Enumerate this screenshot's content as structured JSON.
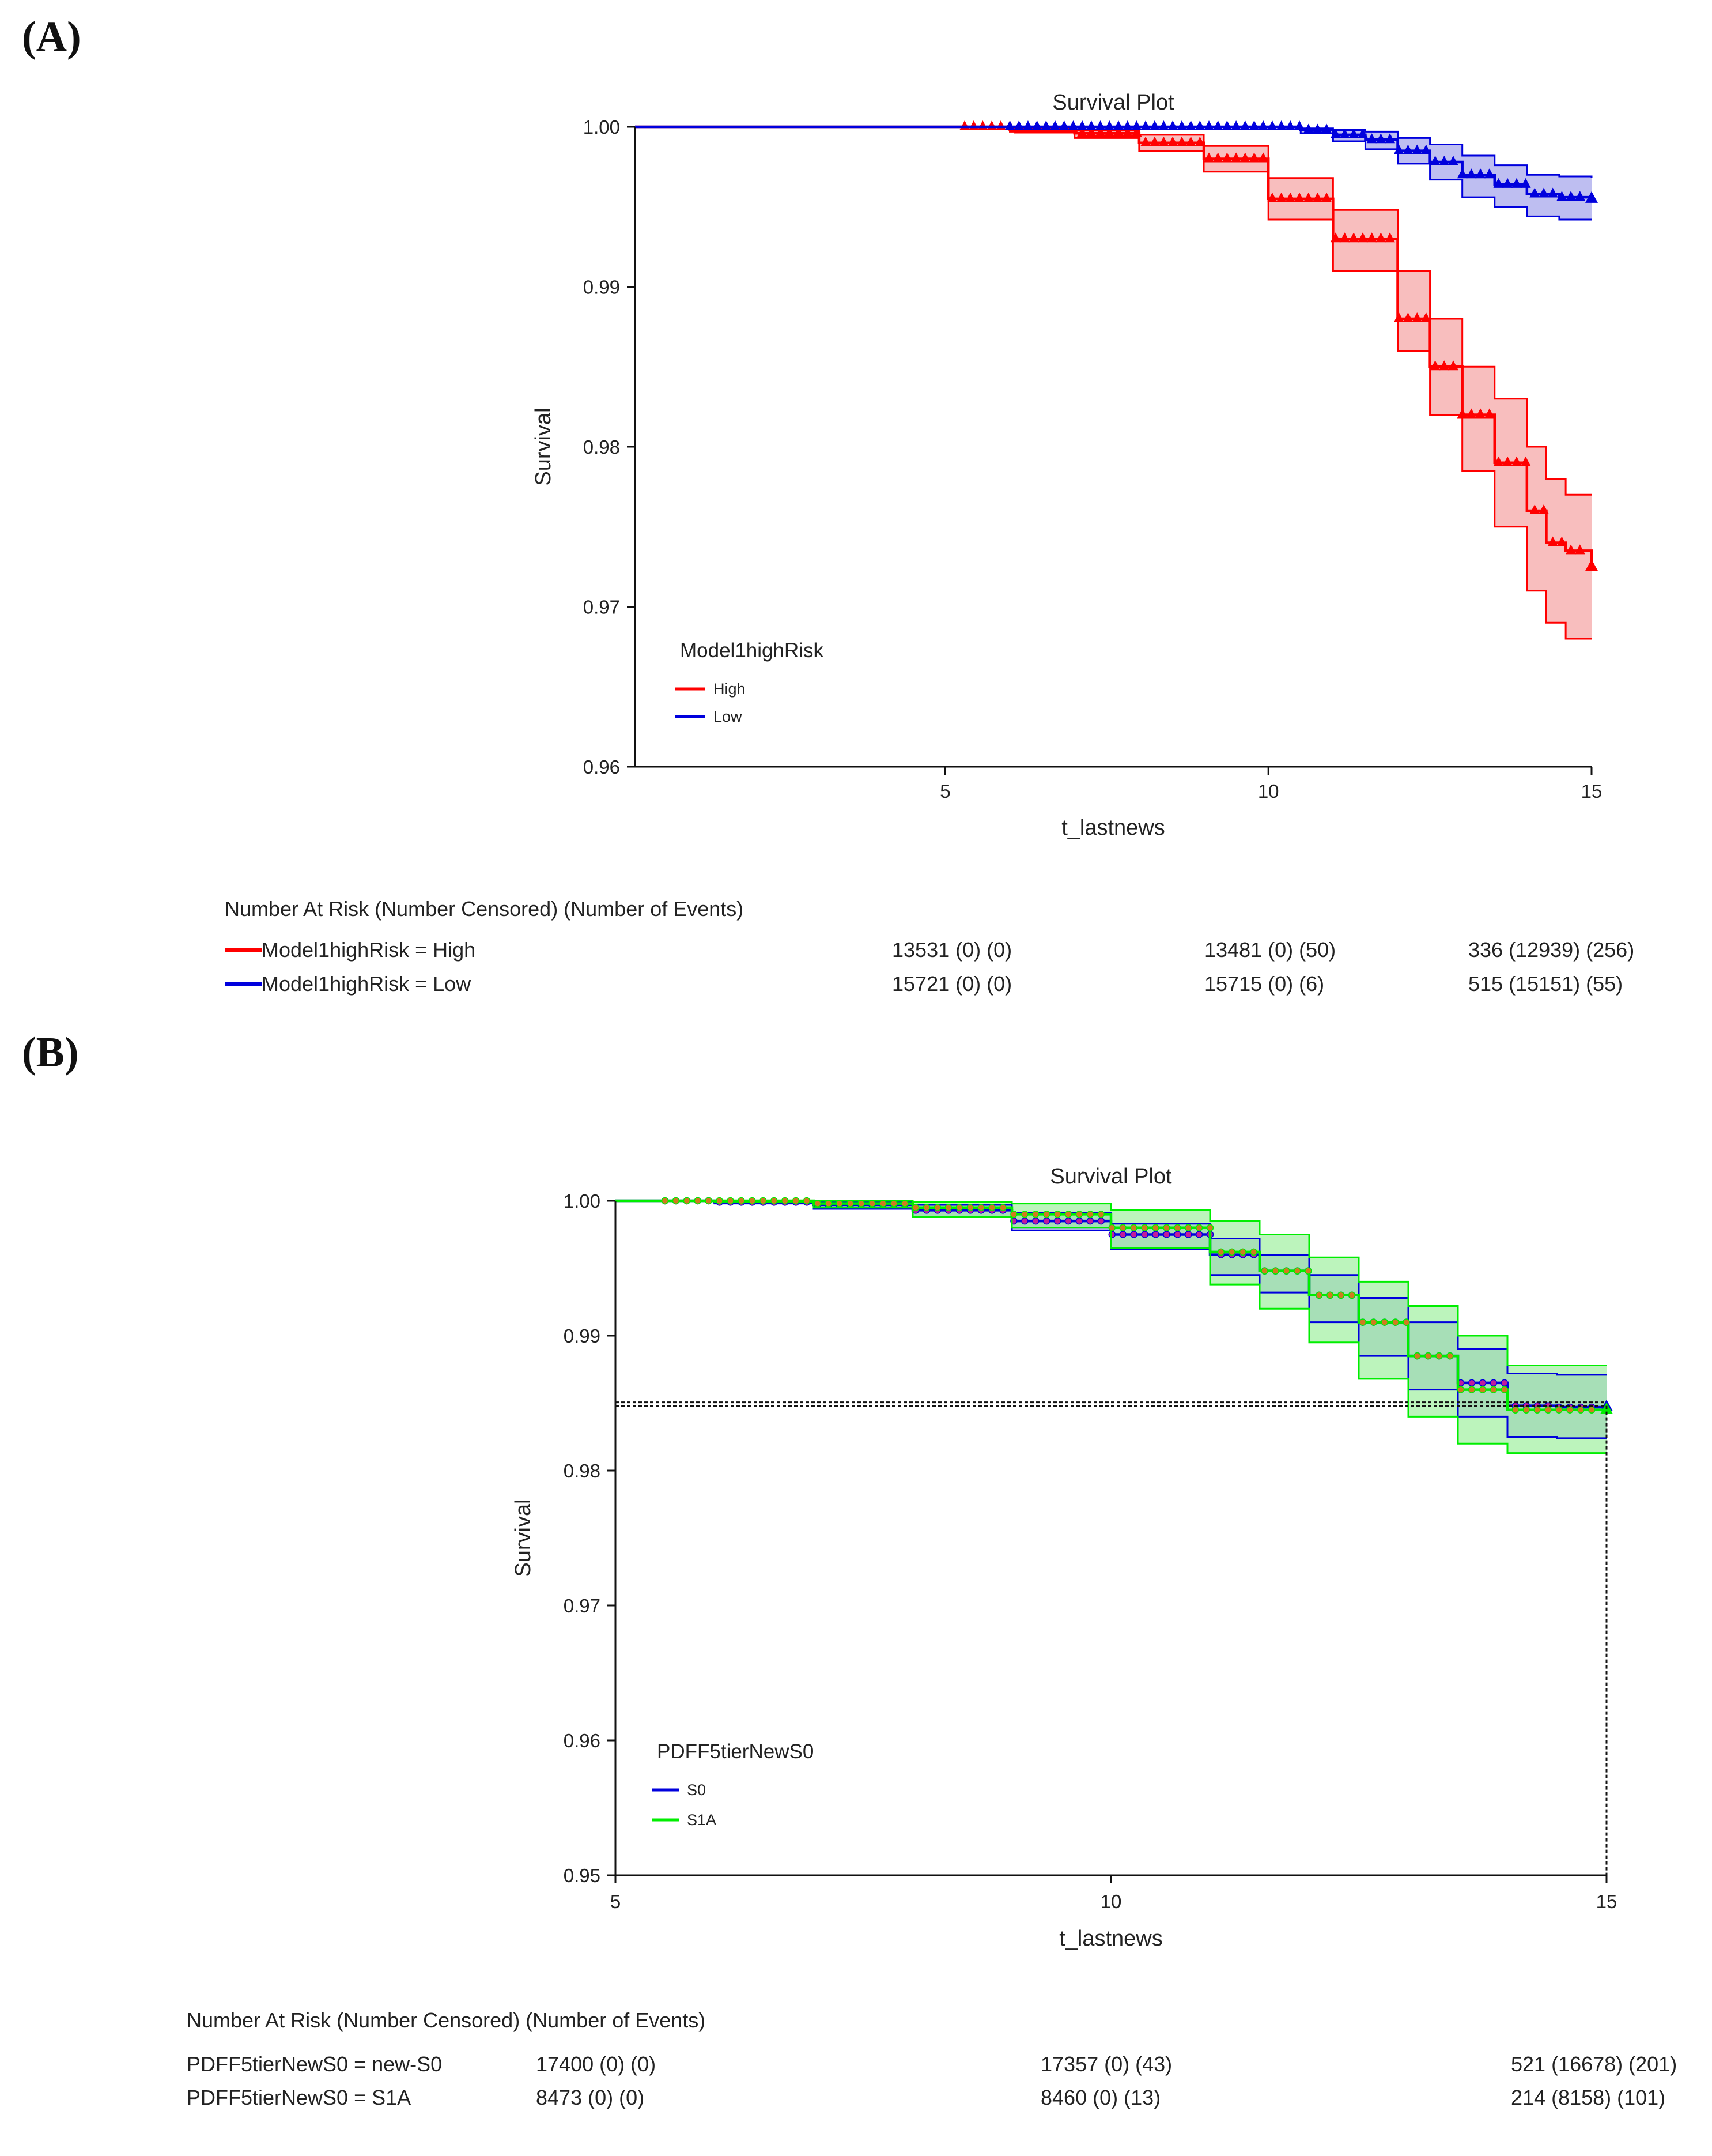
{
  "chart_data": [
    {
      "panel_label": "(A)",
      "type": "line",
      "subtype": "kaplan-meier survival with confidence bands",
      "title": "Survival Plot",
      "xlabel": "t_lastnews",
      "ylabel": "Survival",
      "xlim": [
        0.2,
        15
      ],
      "ylim": [
        0.96,
        1.0
      ],
      "xticks": [
        "5",
        "10",
        "15"
      ],
      "yticks": [
        "1.00",
        "0.99",
        "0.98",
        "0.97",
        "0.96"
      ],
      "grid": false,
      "legend": {
        "title": "Model1highRisk",
        "position": "bottom-left",
        "entries": [
          "High",
          "Low"
        ]
      },
      "colors": {
        "High": "#ff0000",
        "Low": "#0000dd",
        "High_band": "#f7b3b3",
        "Low_band": "#b3b3ef"
      },
      "series": [
        {
          "name": "High",
          "x": [
            0.2,
            5.3,
            6.0,
            7.0,
            8.0,
            9.0,
            10.0,
            11.0,
            12.0,
            12.5,
            13.0,
            13.5,
            14.0,
            14.3,
            14.6,
            15.0
          ],
          "values": [
            1.0,
            1.0,
            0.9998,
            0.9996,
            0.999,
            0.998,
            0.9955,
            0.993,
            0.988,
            0.985,
            0.982,
            0.979,
            0.976,
            0.974,
            0.9735,
            0.9725
          ],
          "lower": [
            1.0,
            1.0,
            0.9997,
            0.9993,
            0.9985,
            0.9972,
            0.9942,
            0.991,
            0.986,
            0.982,
            0.9785,
            0.975,
            0.971,
            0.969,
            0.968,
            0.968
          ],
          "upper": [
            1.0,
            1.0,
            0.9999,
            0.9998,
            0.9995,
            0.9988,
            0.9968,
            0.9948,
            0.991,
            0.988,
            0.985,
            0.983,
            0.98,
            0.978,
            0.977,
            0.977
          ]
        },
        {
          "name": "Low",
          "x": [
            0.2,
            5.0,
            8.0,
            10.0,
            10.5,
            11.0,
            11.5,
            12.0,
            12.5,
            13.0,
            13.5,
            14.0,
            14.5,
            15.0
          ],
          "values": [
            1.0,
            1.0,
            1.0,
            1.0,
            0.9998,
            0.9995,
            0.9992,
            0.9985,
            0.9978,
            0.997,
            0.9964,
            0.9958,
            0.9956,
            0.9955
          ],
          "lower": [
            1.0,
            1.0,
            1.0,
            1.0,
            0.9996,
            0.9991,
            0.9986,
            0.9977,
            0.9967,
            0.9956,
            0.995,
            0.9944,
            0.9942,
            0.9942
          ],
          "upper": [
            1.0,
            1.0,
            1.0,
            1.0,
            0.9999,
            0.9998,
            0.9997,
            0.9993,
            0.9989,
            0.9982,
            0.9976,
            0.997,
            0.9969,
            0.9968
          ]
        }
      ],
      "risk_table": {
        "title": "Number At Risk (Number Censored) (Number of Events)",
        "rows": [
          {
            "label": "Model1highRisk = High",
            "color": "#ff0000",
            "values": [
              "13531 (0) (0)",
              "13481 (0) (50)",
              "336 (12939) (256)"
            ]
          },
          {
            "label": "Model1highRisk = Low",
            "color": "#0000dd",
            "values": [
              "15721 (0) (0)",
              "15715 (0) (6)",
              "515 (15151) (55)"
            ]
          }
        ]
      }
    },
    {
      "panel_label": "(B)",
      "type": "line",
      "subtype": "kaplan-meier survival with confidence bands",
      "title": "Survival Plot",
      "xlabel": "t_lastnews",
      "ylabel": "Survival",
      "xlim": [
        5,
        15
      ],
      "ylim": [
        0.95,
        1.0
      ],
      "xticks": [
        "5",
        "10",
        "15"
      ],
      "yticks": [
        "1.00",
        "0.99",
        "0.98",
        "0.97",
        "0.96",
        "0.95"
      ],
      "grid": false,
      "reference_y": 0.9848,
      "legend": {
        "title": "PDFF5tierNewS0",
        "position": "bottom-left",
        "entries": [
          "S0",
          "S1A"
        ]
      },
      "colors": {
        "S0": "#0000dd",
        "S1A": "#00ee00",
        "S0_band": "#8f8fe6",
        "S1A_band": "#a6f0a6",
        "overlap_band": "#3f9f9f"
      },
      "series": [
        {
          "name": "S0",
          "x": [
            5.0,
            6.0,
            7.0,
            8.0,
            9.0,
            10.0,
            11.0,
            11.5,
            12.0,
            12.5,
            13.0,
            13.5,
            14.0,
            14.5,
            15.0
          ],
          "values": [
            1.0,
            0.9999,
            0.9997,
            0.9993,
            0.9985,
            0.9975,
            0.996,
            0.9948,
            0.993,
            0.991,
            0.9885,
            0.9865,
            0.9848,
            0.9847,
            0.9847
          ],
          "lower": [
            1.0,
            0.9998,
            0.9994,
            0.9988,
            0.9978,
            0.9964,
            0.9945,
            0.9932,
            0.991,
            0.9885,
            0.986,
            0.984,
            0.9825,
            0.9824,
            0.9824
          ],
          "upper": [
            1.0,
            1.0,
            0.9999,
            0.9997,
            0.9991,
            0.9983,
            0.9972,
            0.996,
            0.9945,
            0.9928,
            0.991,
            0.989,
            0.9872,
            0.9871,
            0.9871
          ]
        },
        {
          "name": "S1A",
          "x": [
            5.0,
            6.0,
            7.0,
            8.0,
            9.0,
            10.0,
            11.0,
            11.5,
            12.0,
            12.5,
            13.0,
            13.5,
            14.0,
            14.5,
            15.0
          ],
          "values": [
            1.0,
            1.0,
            0.9998,
            0.9995,
            0.999,
            0.998,
            0.9962,
            0.9948,
            0.993,
            0.991,
            0.9885,
            0.986,
            0.9845,
            0.9845,
            0.9845
          ],
          "lower": [
            1.0,
            0.9999,
            0.9995,
            0.9988,
            0.998,
            0.9965,
            0.9938,
            0.992,
            0.9895,
            0.9868,
            0.984,
            0.982,
            0.9813,
            0.9813,
            0.9813
          ],
          "upper": [
            1.0,
            1.0,
            1.0,
            0.9999,
            0.9998,
            0.9993,
            0.9985,
            0.9975,
            0.9958,
            0.994,
            0.9922,
            0.99,
            0.9878,
            0.9878,
            0.9878
          ]
        }
      ],
      "risk_table": {
        "title": "Number At Risk (Number Censored) (Number of Events)",
        "rows": [
          {
            "label": "PDFF5tierNewS0 = new-S0",
            "values": [
              "17400 (0) (0)",
              "17357 (0) (43)",
              "521 (16678) (201)"
            ]
          },
          {
            "label": "PDFF5tierNewS0 = S1A",
            "values": [
              "8473 (0) (0)",
              "8460 (0) (13)",
              "214 (8158) (101)"
            ]
          }
        ]
      }
    }
  ]
}
